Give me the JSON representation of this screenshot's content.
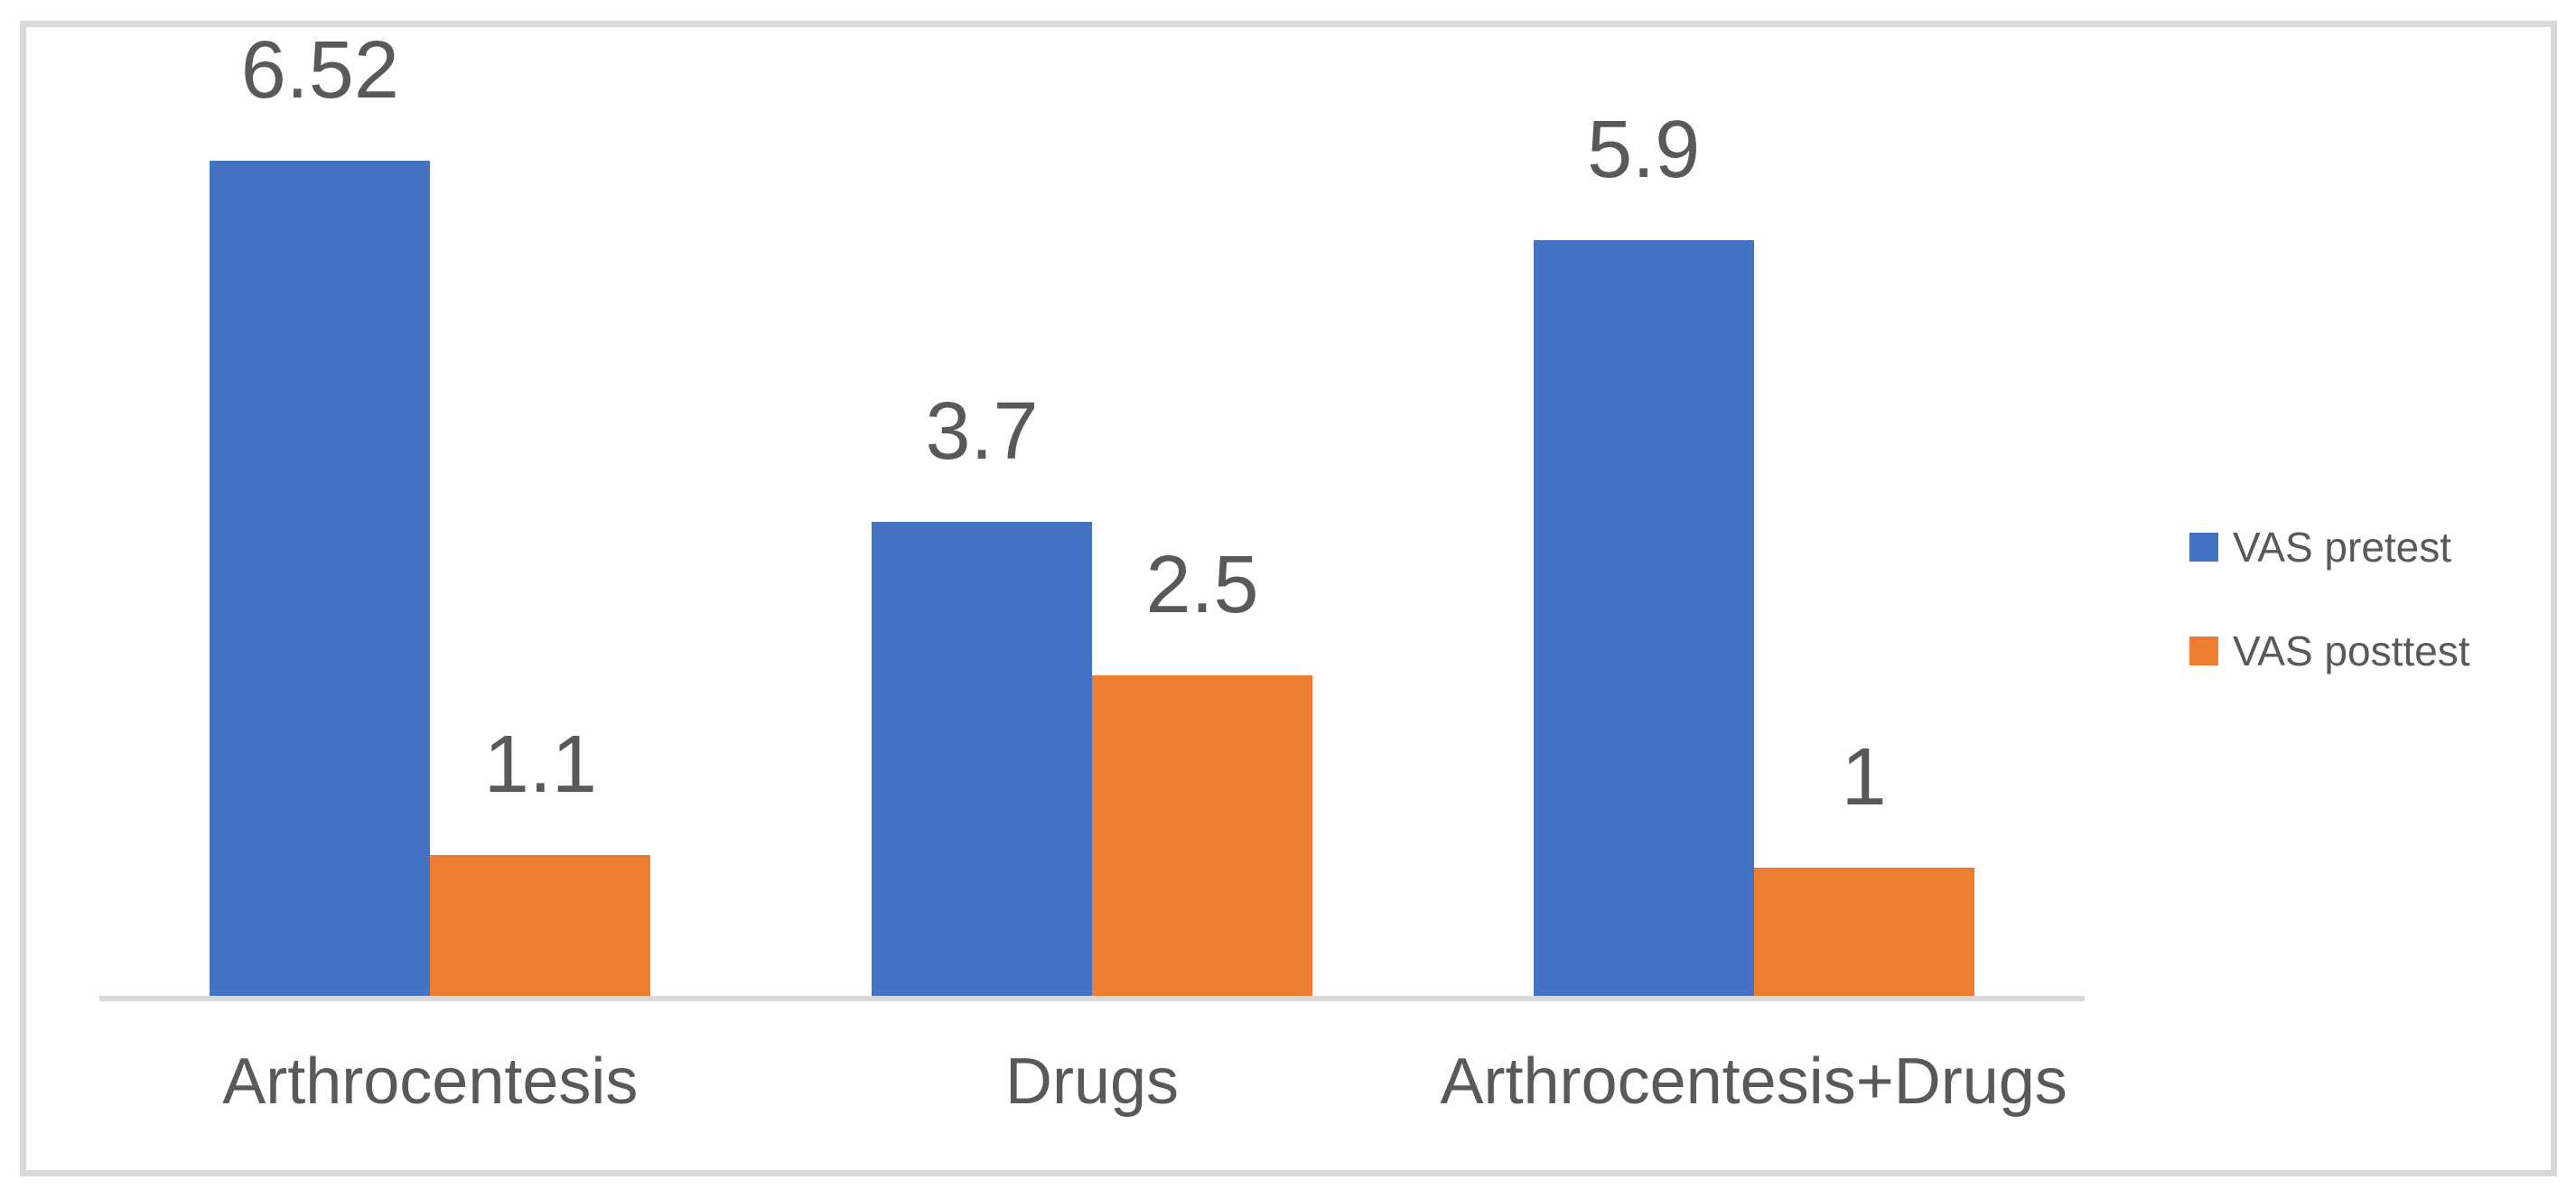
{
  "figure": {
    "background_color": "#ffffff",
    "frame_border_color": "#d9d9d9",
    "text_color": "#595959",
    "axis_line_color": "#d9d9d9"
  },
  "chart_data": {
    "type": "bar",
    "title": "",
    "xlabel": "",
    "ylabel": "",
    "categories": [
      "Arthrocentesis",
      "Drugs",
      "Arthrocentesis+Drugs"
    ],
    "series": [
      {
        "name": "VAS pretest",
        "color": "#4472C4",
        "values": [
          6.52,
          3.7,
          5.9
        ],
        "data_labels": [
          "6.52",
          "3.7",
          "5.9"
        ]
      },
      {
        "name": "VAS posttest",
        "color": "#ED7D31",
        "values": [
          1.1,
          2.5,
          1
        ],
        "data_labels": [
          "1.1",
          "2.5",
          "1"
        ]
      }
    ],
    "ylim": [
      0,
      7
    ],
    "grid": false,
    "y_axis_visible": false,
    "x_axis_line_visible": true,
    "data_labels_shown": true,
    "legend_position": "right"
  },
  "legend": {
    "items": [
      {
        "label": "VAS pretest",
        "color": "#4472C4"
      },
      {
        "label": "VAS posttest",
        "color": "#ED7D31"
      }
    ]
  }
}
